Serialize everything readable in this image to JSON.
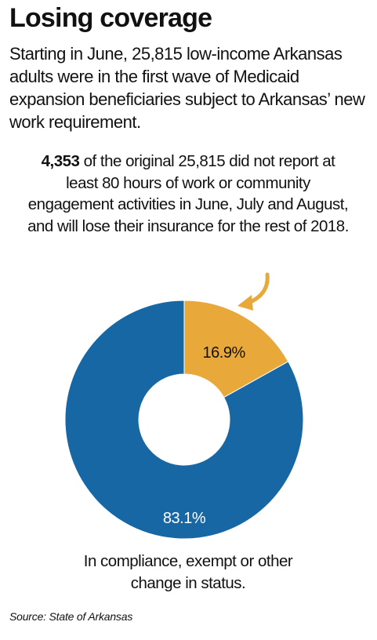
{
  "headline": {
    "title": "Losing coverage",
    "subtitle": "Starting in June, 25,815 low-income Arkansas adults were in the first wave of Medicaid expansion beneficiaries subject to Arkansas’ new work requirement."
  },
  "callout": {
    "number": "4,353",
    "text": " of the original 25,815 did not report at least 80 hours of work or community engagement activities in June, July and August, and will lose their insurance for the rest of 2018."
  },
  "chart_data": {
    "type": "pie",
    "donut": true,
    "slices": [
      {
        "label": "16.9%",
        "value": 16.9,
        "color": "#e8a93a",
        "text_color": "#111111"
      },
      {
        "label": "83.1%",
        "value": 83.1,
        "color": "#1767a5",
        "text_color": "#ffffff"
      }
    ],
    "annotation": "In compliance, exempt or other change in status."
  },
  "colors": {
    "arrow": "#e8a93a",
    "losing": "#e8a93a",
    "compliant": "#1767a5"
  },
  "source": "Source: State of Arkansas"
}
